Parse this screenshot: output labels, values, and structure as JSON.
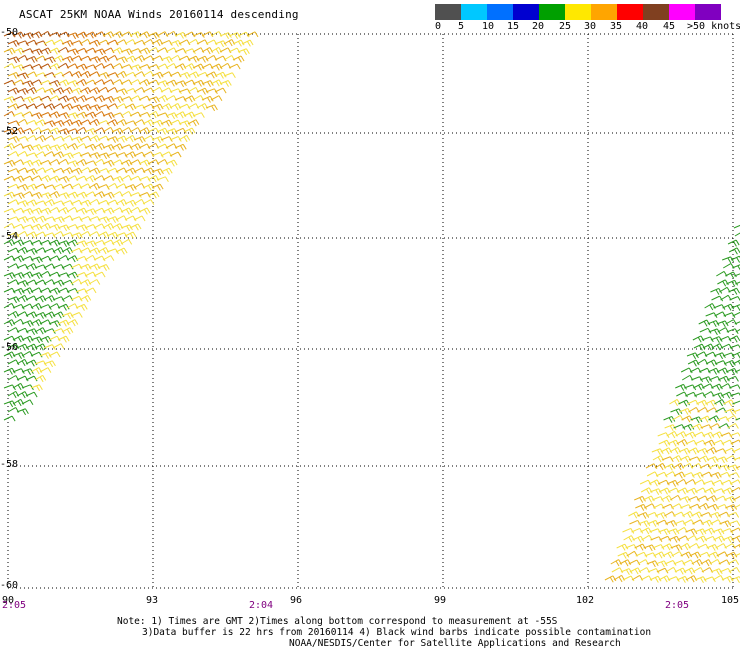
{
  "title": "ASCAT 25KM NOAA Winds 20160114 descending",
  "legend": {
    "colors": [
      "#505050",
      "#00c8ff",
      "#0070ff",
      "#0000d0",
      "#00a000",
      "#ffe800",
      "#ffa500",
      "#ff6000",
      "#ff0000",
      "#804020",
      "#ff00ff",
      "#8000c0",
      "#500070"
    ],
    "labels": [
      "0",
      "5",
      "10",
      "15",
      "20",
      "25",
      "30",
      "35",
      "40",
      "45",
      ">50 knots"
    ]
  },
  "lat_labels": [
    "-50",
    "-52",
    "-54",
    "-56",
    "-58",
    "-60"
  ],
  "lon_labels": [
    "90",
    "93",
    "96",
    "99",
    "102",
    "105"
  ],
  "time_labels": [
    "2:05",
    "2:04",
    "2:05"
  ],
  "notes": {
    "line1": "Note: 1) Times are GMT 2)Times along bottom correspond to measurement at -55S",
    "line2": "3)Data buffer is 22 hrs from 20160114 4) Black wind barbs indicate possible contamination",
    "line3": "NOAA/NESDIS/Center for Satellite Applications and Research"
  },
  "map": {
    "lon_range": [
      90,
      105
    ],
    "lat_range": [
      -60,
      -50
    ],
    "swath_colors": {
      "green": "#2a9a20",
      "yellow": "#f5e040",
      "gold": "#e8b420",
      "orange": "#d87a10",
      "rust": "#b85a10"
    }
  }
}
